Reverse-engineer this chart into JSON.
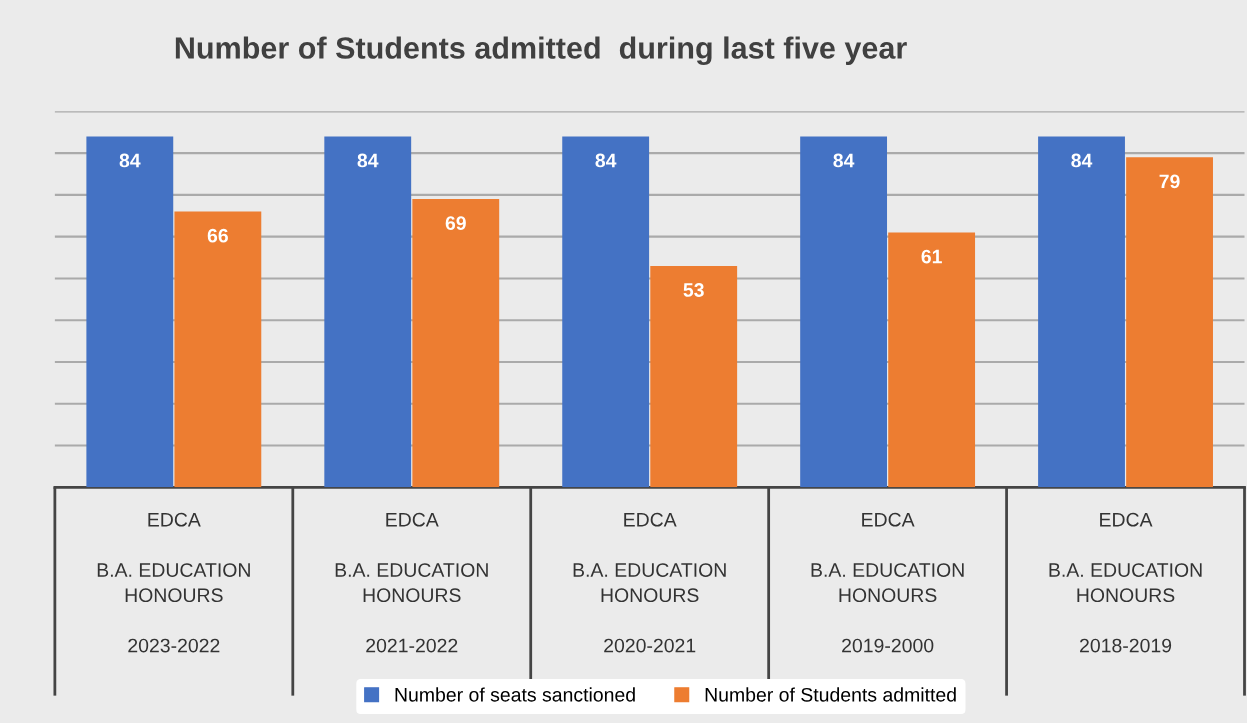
{
  "chart_data": {
    "type": "bar",
    "title": "Number of Students admitted  during last five year",
    "categories": [
      "EDCA\n\nB.A. EDUCATION\nHONOURS\n\n2023-2022",
      "EDCA\n\nB.A. EDUCATION\nHONOURS\n\n2021-2022",
      "EDCA\n\nB.A. EDUCATION\nHONOURS\n\n2020-2021",
      "EDCA\n\nB.A. EDUCATION\nHONOURS\n\n2019-2000",
      "EDCA\n\nB.A. EDUCATION\nHONOURS\n\n2018-2019"
    ],
    "series": [
      {
        "name": "Number of seats sanctioned",
        "color": "#4472c4",
        "values": [
          84,
          84,
          84,
          84,
          84
        ]
      },
      {
        "name": "Number of Students admitted",
        "color": "#ed7d31",
        "values": [
          66,
          69,
          53,
          61,
          79
        ]
      }
    ],
    "ylim": [
      0,
      90
    ],
    "yticks": [
      {
        "value": 0,
        "label": null
      },
      {
        "value": 10,
        "label": null
      },
      {
        "value": 20,
        "label": null
      },
      {
        "value": 30,
        "label": null
      },
      {
        "value": 40,
        "label": null
      },
      {
        "value": 50,
        "label": null
      },
      {
        "value": 60,
        "label": null
      },
      {
        "value": 70,
        "label": null
      },
      {
        "value": 80,
        "label": null
      },
      {
        "value": 90,
        "label": null
      }
    ],
    "tick_labels": "x",
    "grid": "y",
    "legend": "bottom",
    "data_labels": true
  }
}
